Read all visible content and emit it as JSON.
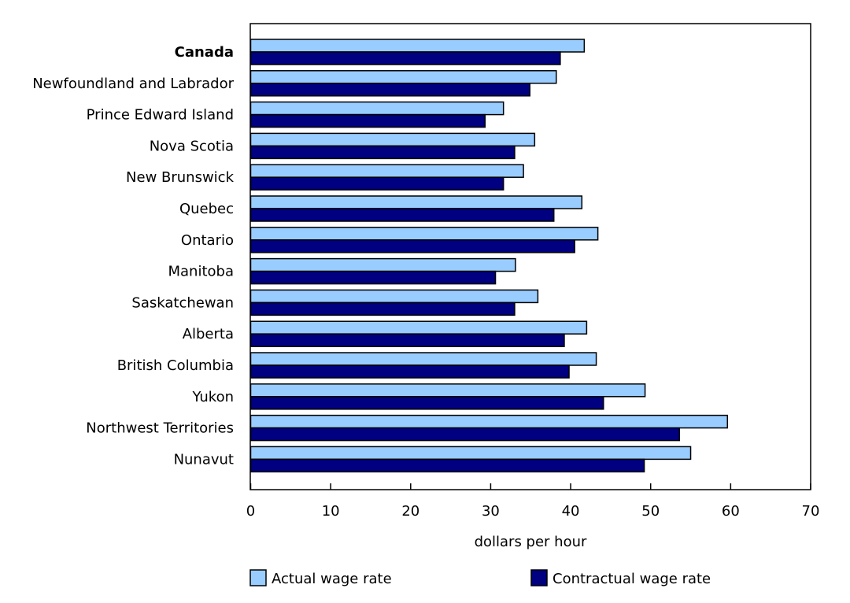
{
  "chart_data": {
    "type": "bar",
    "orientation": "horizontal",
    "title": "",
    "xlabel": "dollars per hour",
    "ylabel": "",
    "xlim": [
      0,
      70
    ],
    "xticks": [
      0,
      10,
      20,
      30,
      40,
      50,
      60,
      70
    ],
    "grid": false,
    "legend_position": "bottom",
    "categories": [
      "Canada",
      "Newfoundland and Labrador",
      "Prince Edward Island",
      "Nova Scotia",
      "New Brunswick",
      "Quebec",
      "Ontario",
      "Manitoba",
      "Saskatchewan",
      "Alberta",
      "British Columbia",
      "Yukon",
      "Northwest Territories",
      "Nunavut"
    ],
    "bold_categories": [
      "Canada"
    ],
    "series": [
      {
        "name": "Actual wage rate",
        "color": "#99ccff",
        "values": [
          41.7,
          38.2,
          31.6,
          35.5,
          34.1,
          41.4,
          43.4,
          33.1,
          35.9,
          42.0,
          43.2,
          49.3,
          59.6,
          55.0
        ]
      },
      {
        "name": "Contractual wage rate",
        "color": "#000080",
        "values": [
          38.7,
          34.9,
          29.3,
          33.0,
          31.6,
          37.9,
          40.5,
          30.6,
          33.0,
          39.2,
          39.8,
          44.1,
          53.6,
          49.2
        ]
      }
    ]
  }
}
